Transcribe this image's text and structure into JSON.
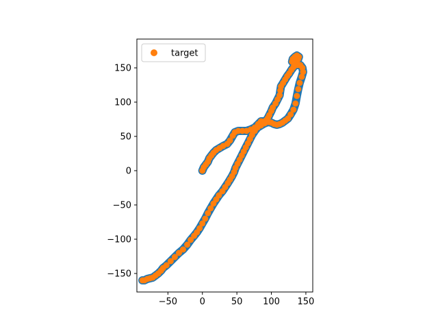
{
  "chart_data": {
    "type": "scatter",
    "title": "",
    "xlabel": "",
    "ylabel": "",
    "xlim": [
      -95,
      160
    ],
    "ylim": [
      -177,
      192
    ],
    "xticks": [
      -50,
      0,
      50,
      100,
      150
    ],
    "yticks": [
      -150,
      -100,
      -50,
      0,
      50,
      100,
      150
    ],
    "grid": false,
    "legend": {
      "position": "upper-left",
      "entries": [
        "target"
      ]
    },
    "colors": {
      "trajectory": "#1f77b4",
      "target": "#ff7f0e"
    },
    "series": [
      {
        "marker": "line",
        "values": [
          [
            0,
            0
          ],
          [
            2,
            5
          ],
          [
            5,
            9
          ],
          [
            8,
            13
          ],
          [
            10,
            18
          ],
          [
            13,
            22
          ],
          [
            16,
            26
          ],
          [
            20,
            30
          ],
          [
            25,
            33
          ],
          [
            30,
            36
          ],
          [
            36,
            39
          ],
          [
            40,
            44
          ],
          [
            44,
            51
          ],
          [
            47,
            56
          ],
          [
            52,
            58
          ],
          [
            58,
            58
          ],
          [
            64,
            58
          ],
          [
            70,
            60
          ],
          [
            76,
            63
          ],
          [
            81,
            68
          ],
          [
            85,
            72
          ],
          [
            90,
            72
          ],
          [
            93,
            74
          ],
          [
            95,
            77
          ],
          [
            97,
            81
          ],
          [
            100,
            87
          ],
          [
            102,
            92
          ],
          [
            106,
            98
          ],
          [
            109,
            104
          ],
          [
            112,
            110
          ],
          [
            113,
            117
          ],
          [
            114,
            123
          ],
          [
            117,
            128
          ],
          [
            120,
            133
          ],
          [
            123,
            138
          ],
          [
            126,
            142
          ],
          [
            129,
            147
          ],
          [
            132,
            151
          ],
          [
            135,
            154
          ],
          [
            137,
            158
          ],
          [
            139,
            163
          ],
          [
            140,
            166
          ],
          [
            137,
            168
          ],
          [
            134,
            166
          ],
          [
            131,
            163
          ],
          [
            130,
            159
          ],
          [
            133,
            156
          ],
          [
            138,
            154
          ],
          [
            142,
            154
          ],
          [
            145,
            150
          ],
          [
            146,
            144
          ],
          [
            144,
            137
          ],
          [
            141,
            128
          ],
          [
            139,
            119
          ],
          [
            137,
            109
          ],
          [
            135,
            98
          ],
          [
            132,
            89
          ],
          [
            128,
            82
          ],
          [
            124,
            76
          ],
          [
            120,
            73
          ],
          [
            116,
            70
          ],
          [
            112,
            68
          ],
          [
            108,
            67
          ],
          [
            104,
            68
          ],
          [
            100,
            70
          ],
          [
            95,
            71
          ],
          [
            90,
            69
          ],
          [
            85,
            66
          ],
          [
            80,
            63
          ],
          [
            76,
            58
          ],
          [
            72,
            52
          ],
          [
            69,
            46
          ],
          [
            66,
            40
          ],
          [
            63,
            34
          ],
          [
            60,
            28
          ],
          [
            57,
            22
          ],
          [
            54,
            16
          ],
          [
            51,
            10
          ],
          [
            48,
            4
          ],
          [
            46,
            -2
          ],
          [
            43,
            -8
          ],
          [
            40,
            -13
          ],
          [
            37,
            -18
          ],
          [
            33,
            -24
          ],
          [
            29,
            -30
          ],
          [
            24,
            -36
          ],
          [
            20,
            -42
          ],
          [
            16,
            -48
          ],
          [
            12,
            -55
          ],
          [
            8,
            -62
          ],
          [
            4,
            -70
          ],
          [
            0,
            -77
          ],
          [
            -4,
            -84
          ],
          [
            -8,
            -90
          ],
          [
            -12,
            -95
          ],
          [
            -17,
            -101
          ],
          [
            -22,
            -108
          ],
          [
            -28,
            -115
          ],
          [
            -34,
            -120
          ],
          [
            -40,
            -126
          ],
          [
            -46,
            -132
          ],
          [
            -52,
            -138
          ],
          [
            -57,
            -142
          ],
          [
            -60,
            -146
          ],
          [
            -64,
            -150
          ],
          [
            -68,
            -153
          ],
          [
            -72,
            -156
          ],
          [
            -76,
            -157
          ],
          [
            -80,
            -158
          ],
          [
            -84,
            -160
          ],
          [
            -87,
            -160
          ]
        ]
      },
      {
        "name": "target",
        "marker": "circle",
        "values": [
          [
            0,
            0
          ],
          [
            2,
            5
          ],
          [
            5,
            9
          ],
          [
            8,
            13
          ],
          [
            10,
            18
          ],
          [
            13,
            22
          ],
          [
            16,
            26
          ],
          [
            20,
            30
          ],
          [
            25,
            33
          ],
          [
            30,
            36
          ],
          [
            36,
            39
          ],
          [
            40,
            44
          ],
          [
            44,
            51
          ],
          [
            47,
            56
          ],
          [
            52,
            58
          ],
          [
            58,
            58
          ],
          [
            64,
            58
          ],
          [
            70,
            60
          ],
          [
            76,
            63
          ],
          [
            81,
            68
          ],
          [
            85,
            72
          ],
          [
            90,
            72
          ],
          [
            93,
            74
          ],
          [
            95,
            77
          ],
          [
            97,
            81
          ],
          [
            100,
            87
          ],
          [
            102,
            92
          ],
          [
            106,
            98
          ],
          [
            109,
            104
          ],
          [
            112,
            110
          ],
          [
            113,
            117
          ],
          [
            114,
            123
          ],
          [
            117,
            128
          ],
          [
            120,
            133
          ],
          [
            123,
            138
          ],
          [
            126,
            142
          ],
          [
            129,
            147
          ],
          [
            132,
            151
          ],
          [
            135,
            154
          ],
          [
            137,
            158
          ],
          [
            139,
            163
          ],
          [
            140,
            166
          ],
          [
            137,
            168
          ],
          [
            134,
            166
          ],
          [
            131,
            163
          ],
          [
            130,
            159
          ],
          [
            133,
            156
          ],
          [
            138,
            154
          ],
          [
            142,
            154
          ],
          [
            145,
            150
          ],
          [
            146,
            144
          ],
          [
            144,
            137
          ],
          [
            141,
            128
          ],
          [
            139,
            119
          ],
          [
            137,
            109
          ],
          [
            135,
            98
          ],
          [
            132,
            89
          ],
          [
            128,
            82
          ],
          [
            124,
            76
          ],
          [
            120,
            73
          ],
          [
            116,
            70
          ],
          [
            112,
            68
          ],
          [
            108,
            67
          ],
          [
            104,
            68
          ],
          [
            100,
            70
          ],
          [
            95,
            71
          ],
          [
            90,
            69
          ],
          [
            85,
            66
          ],
          [
            80,
            63
          ],
          [
            76,
            58
          ],
          [
            72,
            52
          ],
          [
            69,
            46
          ],
          [
            66,
            40
          ],
          [
            63,
            34
          ],
          [
            60,
            28
          ],
          [
            57,
            22
          ],
          [
            54,
            16
          ],
          [
            51,
            10
          ],
          [
            48,
            4
          ],
          [
            46,
            -2
          ],
          [
            43,
            -8
          ],
          [
            40,
            -13
          ],
          [
            37,
            -18
          ],
          [
            33,
            -24
          ],
          [
            29,
            -30
          ],
          [
            24,
            -36
          ],
          [
            20,
            -42
          ],
          [
            16,
            -48
          ],
          [
            12,
            -55
          ],
          [
            8,
            -62
          ],
          [
            4,
            -70
          ],
          [
            0,
            -77
          ],
          [
            -4,
            -84
          ],
          [
            -8,
            -90
          ],
          [
            -12,
            -95
          ],
          [
            -17,
            -101
          ],
          [
            -22,
            -108
          ],
          [
            -28,
            -115
          ],
          [
            -34,
            -120
          ],
          [
            -40,
            -126
          ],
          [
            -46,
            -132
          ],
          [
            -52,
            -138
          ],
          [
            -57,
            -142
          ],
          [
            -60,
            -146
          ],
          [
            -64,
            -150
          ],
          [
            -68,
            -153
          ],
          [
            -72,
            -156
          ],
          [
            -76,
            -157
          ],
          [
            -80,
            -158
          ],
          [
            -84,
            -160
          ],
          [
            -87,
            -160
          ]
        ]
      }
    ]
  }
}
